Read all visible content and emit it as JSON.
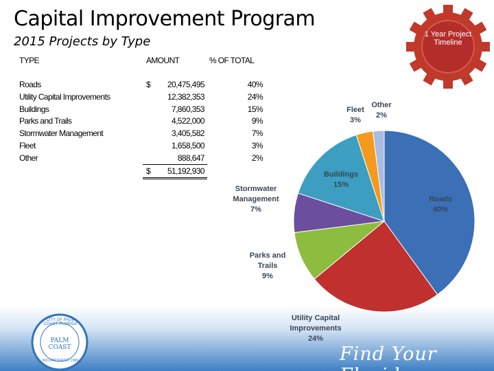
{
  "header": {
    "title": "Capital Improvement Program",
    "subtitle": "2015 Projects by Type"
  },
  "badge": {
    "text": "1 Year Project Timeline"
  },
  "table": {
    "columns": [
      "TYPE",
      "AMOUNT",
      "% OF TOTAL"
    ],
    "rows": [
      [
        "Roads",
        "$",
        "20,475,495",
        "40%"
      ],
      [
        "Utility Capital Improvements",
        "",
        "12,382,353",
        "24%"
      ],
      [
        "Buildings",
        "",
        "7,860,353",
        "15%"
      ],
      [
        "Parks and Trails",
        "",
        "4,522,000",
        "9%"
      ],
      [
        "Stormwater Management",
        "",
        "3,405,582",
        "7%"
      ],
      [
        "Fleet",
        "",
        "1,658,500",
        "3%"
      ],
      [
        "Other",
        "",
        "888,647",
        "2%"
      ]
    ],
    "total": [
      "$",
      "51,192,930"
    ]
  },
  "chart_data": {
    "type": "pie",
    "categories": [
      "Roads",
      "Utility Capital Improvements",
      "Parks and Trails",
      "Stormwater Management",
      "Buildings",
      "Fleet",
      "Other"
    ],
    "values": [
      40,
      24,
      9,
      7,
      15,
      3,
      2
    ],
    "value_labels": [
      "40%",
      "24%",
      "9%",
      "7%",
      "15%",
      "3%",
      "2%"
    ],
    "colors": [
      "#3b6fb6",
      "#c0302f",
      "#8cbd3f",
      "#6b4e9e",
      "#3c9ec0",
      "#f39a1e",
      "#a8bde0"
    ]
  },
  "footer": {
    "logo_ring": "CITY OF PALM COAST, FLORIDA",
    "logo_name": "PALM COAST",
    "logo_year": "INCORPORATED 1999",
    "slogan": "Find Your Florida"
  }
}
